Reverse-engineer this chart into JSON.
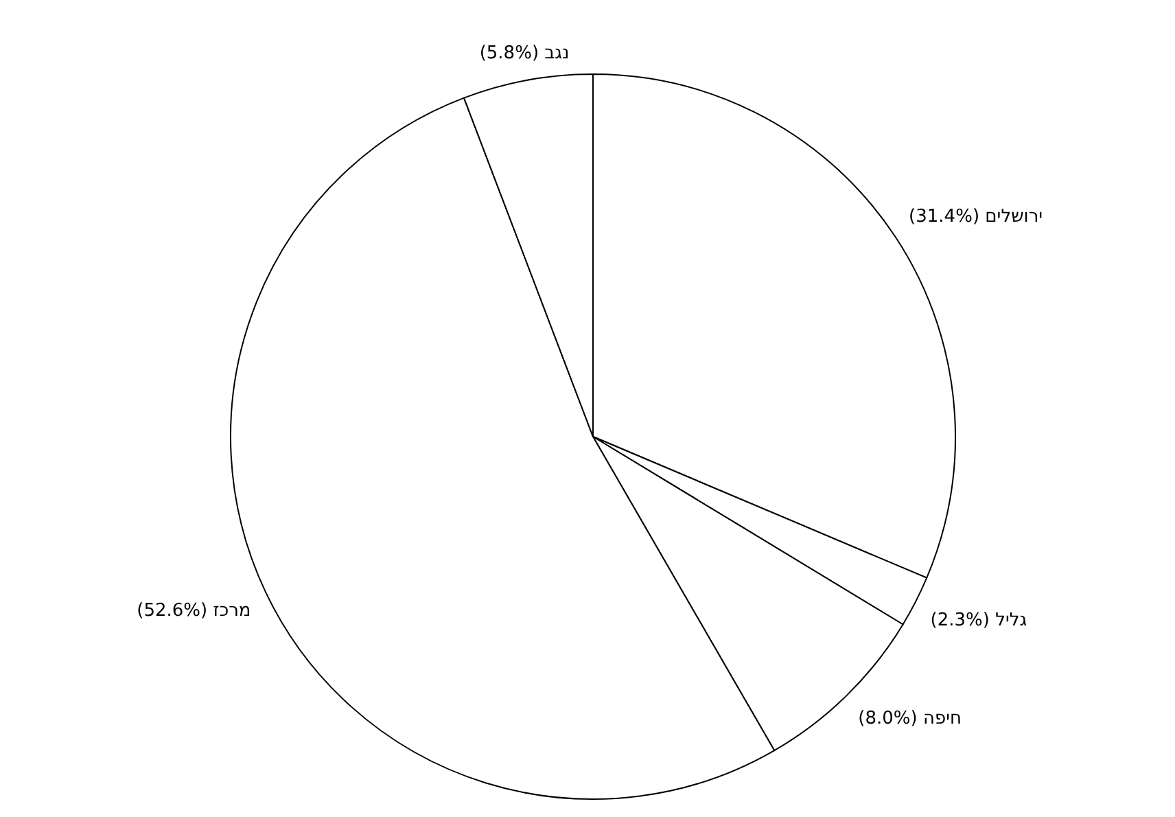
{
  "chart_data": {
    "type": "pie",
    "categories": [
      "ירושלים",
      "גליל",
      "חיפה",
      "מרכז",
      "נגב"
    ],
    "values": [
      31.4,
      2.3,
      8.0,
      52.6,
      5.8
    ],
    "value_labels": [
      "(31.4%)",
      "(2.3%)",
      "(8.0%)",
      "(52.6%)",
      "(5.8%)"
    ],
    "colors": [
      "#ffffff",
      "#ffffff",
      "#ffffff",
      "#ffffff",
      "#ffffff"
    ]
  }
}
